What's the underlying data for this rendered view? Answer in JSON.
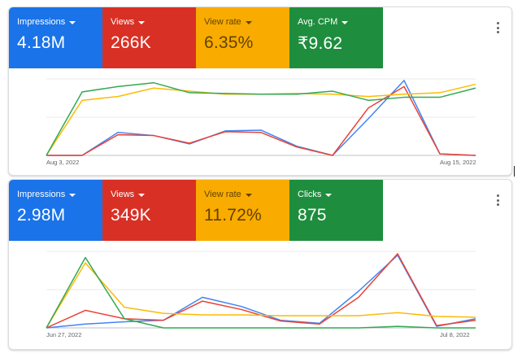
{
  "cards": [
    {
      "tiles": [
        {
          "label": "Impressions",
          "value": "4.18M",
          "color": "#1a73e8"
        },
        {
          "label": "Views",
          "value": "266K",
          "color": "#d93025"
        },
        {
          "label": "View rate",
          "value": "6.35%",
          "color": "#f9ab00"
        },
        {
          "label": "Avg. CPM",
          "value": "₹9.62",
          "color": "#1e8e3e"
        }
      ],
      "menu_icon": "more-vert-icon",
      "start_date": "Aug 3, 2022",
      "end_date": "Aug 15, 2022",
      "chart_data": {
        "type": "line",
        "x_count": 13,
        "series": [
          {
            "metric": "Impressions",
            "color": "#4285f4",
            "values": [
              0,
              0,
              30,
              26,
              15,
              32,
              33,
              12,
              0,
              48,
              98,
              2,
              0
            ]
          },
          {
            "metric": "Views",
            "color": "#ea4335",
            "values": [
              0,
              0,
              27,
              26,
              16,
              31,
              30,
              11,
              0,
              62,
              90,
              2,
              0
            ]
          },
          {
            "metric": "View rate",
            "color": "#fbbc04",
            "values": [
              0,
              72,
              77,
              88,
              84,
              80,
              80,
              81,
              80,
              77,
              80,
              82,
              93
            ]
          },
          {
            "metric": "Avg. CPM",
            "color": "#34a853",
            "values": [
              0,
              83,
              90,
              95,
              82,
              81,
              80,
              80,
              84,
              72,
              76,
              76,
              88
            ]
          }
        ],
        "ylim": [
          0,
          100
        ],
        "grid": true
      }
    },
    {
      "tiles": [
        {
          "label": "Impressions",
          "value": "2.98M",
          "color": "#1a73e8"
        },
        {
          "label": "Views",
          "value": "349K",
          "color": "#d93025"
        },
        {
          "label": "View rate",
          "value": "11.72%",
          "color": "#f9ab00"
        },
        {
          "label": "Clicks",
          "value": "875",
          "color": "#1e8e3e"
        }
      ],
      "menu_icon": "more-vert-icon",
      "start_date": "Jun 27, 2022",
      "end_date": "Jul 8, 2022",
      "chart_data": {
        "type": "line",
        "x_count": 12,
        "series": [
          {
            "metric": "Impressions",
            "color": "#4285f4",
            "values": [
              0,
              5,
              8,
              10,
              40,
              28,
              10,
              6,
              48,
              95,
              2,
              12
            ]
          },
          {
            "metric": "Views",
            "color": "#ea4335",
            "values": [
              0,
              23,
              12,
              10,
              35,
              24,
              9,
              5,
              40,
              97,
              3,
              10
            ]
          },
          {
            "metric": "View rate",
            "color": "#fbbc04",
            "values": [
              0,
              85,
              27,
              19,
              17,
              17,
              16,
              16,
              16,
              20,
              15,
              14
            ]
          },
          {
            "metric": "Clicks",
            "color": "#34a853",
            "values": [
              0,
              92,
              12,
              0,
              0,
              0,
              0,
              0,
              0,
              2,
              0,
              0
            ]
          }
        ],
        "ylim": [
          0,
          100
        ],
        "grid": true
      }
    }
  ]
}
